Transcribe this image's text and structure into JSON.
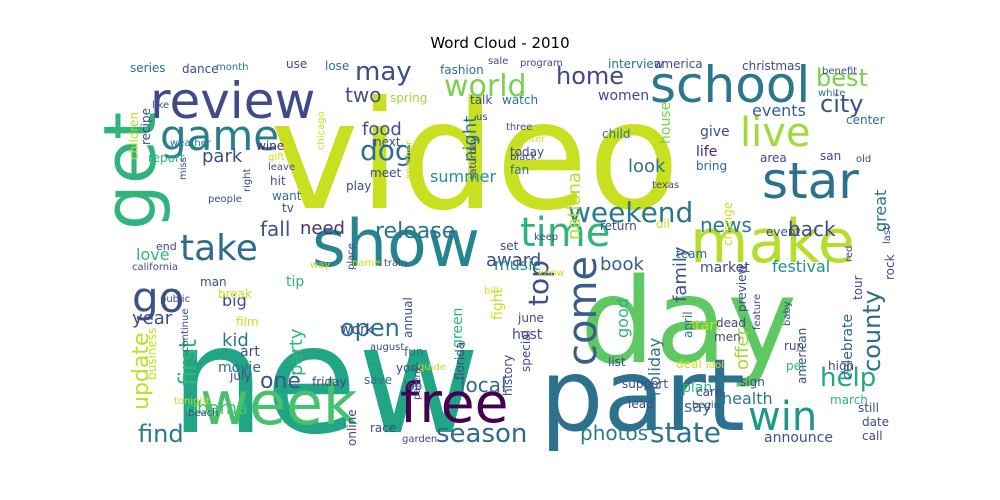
{
  "title": "Word Cloud - 2010",
  "words": [
    {
      "text": "video",
      "c": "#c8e020"
    },
    {
      "text": "new",
      "c": "#21a685"
    },
    {
      "text": "day",
      "c": "#5ec962"
    },
    {
      "text": "part",
      "c": "#2c728e"
    },
    {
      "text": "show",
      "c": "#25858e"
    },
    {
      "text": "week",
      "c": "#48c16e"
    },
    {
      "text": "get",
      "c": "#2fb47c"
    },
    {
      "text": "make",
      "c": "#b5de2b"
    },
    {
      "text": "free",
      "c": "#440154"
    },
    {
      "text": "school",
      "c": "#2a788e"
    },
    {
      "text": "review",
      "c": "#3e4a89"
    },
    {
      "text": "game",
      "c": "#277f8e"
    },
    {
      "text": "go",
      "c": "#3b528b"
    },
    {
      "text": "take",
      "c": "#2f6c8e"
    },
    {
      "text": "star",
      "c": "#2c728e"
    },
    {
      "text": "live",
      "c": "#a0da39"
    },
    {
      "text": "win",
      "c": "#1f988b"
    },
    {
      "text": "time",
      "c": "#2fb47c"
    },
    {
      "text": "come",
      "c": "#365d8d"
    },
    {
      "text": "weekend",
      "c": "#2a788e"
    },
    {
      "text": "state",
      "c": "#2c728e"
    },
    {
      "text": "season",
      "c": "#31688e"
    },
    {
      "text": "top",
      "c": "#3b528b"
    },
    {
      "text": "world",
      "c": "#7ad151"
    },
    {
      "text": "home",
      "c": "#3e4a89"
    },
    {
      "text": "city",
      "c": "#3b528b"
    },
    {
      "text": "best",
      "c": "#7ad151"
    },
    {
      "text": "dog",
      "c": "#2c728e"
    },
    {
      "text": "may",
      "c": "#3e4c8a"
    },
    {
      "text": "help",
      "c": "#22a884"
    },
    {
      "text": "county",
      "c": "#2f6c8e"
    },
    {
      "text": "find",
      "c": "#2a788e"
    },
    {
      "text": "first",
      "c": "#35b779"
    },
    {
      "text": "open",
      "c": "#2c728e"
    },
    {
      "text": "update",
      "c": "#bddf26"
    },
    {
      "text": "release",
      "c": "#2c728e"
    },
    {
      "text": "one",
      "c": "#3b528b"
    },
    {
      "text": "news",
      "c": "#2a788e"
    },
    {
      "text": "photos",
      "c": "#2a788e"
    },
    {
      "text": "back",
      "c": "#3e4a89"
    },
    {
      "text": "fall",
      "c": "#3b528b"
    },
    {
      "text": "two",
      "c": "#3b528b"
    },
    {
      "text": "obama",
      "c": "#48c16e"
    },
    {
      "text": "local",
      "c": "#31688e"
    },
    {
      "text": "need",
      "c": "#46337e"
    },
    {
      "text": "award",
      "c": "#3e4a89"
    },
    {
      "text": "music",
      "c": "#21918c"
    },
    {
      "text": "national",
      "c": "#b5de2b"
    },
    {
      "text": "look",
      "c": "#2c728e"
    },
    {
      "text": "book",
      "c": "#355f8d"
    },
    {
      "text": "family",
      "c": "#3b528b"
    },
    {
      "text": "party",
      "c": "#2fb47c"
    },
    {
      "text": "night",
      "c": "#2c728e"
    },
    {
      "text": "summer",
      "c": "#21918c"
    },
    {
      "text": "food",
      "c": "#3b528b"
    },
    {
      "text": "park",
      "c": "#3e4a89"
    },
    {
      "text": "year",
      "c": "#3e4c8a"
    },
    {
      "text": "kid",
      "c": "#2a788e"
    },
    {
      "text": "love",
      "c": "#35b779"
    },
    {
      "text": "events",
      "c": "#355f8d"
    },
    {
      "text": "great",
      "c": "#2c728e"
    },
    {
      "text": "festival",
      "c": "#21918c"
    },
    {
      "text": "offer",
      "c": "#a5db36"
    },
    {
      "text": "celebrate",
      "c": "#31688e"
    },
    {
      "text": "health",
      "c": "#2a788e"
    },
    {
      "text": "announce",
      "c": "#3b528b"
    },
    {
      "text": "say",
      "c": "#2c728e"
    },
    {
      "text": "holiday",
      "c": "#2c728e"
    },
    {
      "text": "good",
      "c": "#2fb47c"
    },
    {
      "text": "tip",
      "c": "#2fb47c"
    },
    {
      "text": "big",
      "c": "#3e4c8a"
    },
    {
      "text": "art",
      "c": "#3e4a89"
    },
    {
      "text": "movie",
      "c": "#2f6c8e"
    },
    {
      "text": "host",
      "c": "#3e4a89"
    },
    {
      "text": "work",
      "c": "#3b528b"
    },
    {
      "text": "women",
      "c": "#3e4a89"
    },
    {
      "text": "house",
      "c": "#7ad151"
    },
    {
      "text": "life",
      "c": "#482878"
    },
    {
      "text": "give",
      "c": "#3e4a89"
    },
    {
      "text": "bring",
      "c": "#31688e"
    },
    {
      "text": "market",
      "c": "#3e4a89"
    },
    {
      "text": "start",
      "c": "#c8e020"
    },
    {
      "text": "american",
      "c": "#3e4a89"
    },
    {
      "text": "plan",
      "c": "#2fb47c"
    },
    {
      "text": "fashion",
      "c": "#2c728e"
    },
    {
      "text": "interview",
      "c": "#2c728e"
    },
    {
      "text": "america",
      "c": "#3e4a89"
    },
    {
      "text": "christmas",
      "c": "#3e4a89"
    },
    {
      "text": "use",
      "c": "#3e4a89"
    },
    {
      "text": "lose",
      "c": "#2c728e"
    },
    {
      "text": "spring",
      "c": "#9fda3a"
    },
    {
      "text": "talk",
      "c": "#3e4a89"
    },
    {
      "text": "watch",
      "c": "#2c728e"
    },
    {
      "text": "today",
      "c": "#3e4a89"
    },
    {
      "text": "fan",
      "c": "#2c728e"
    },
    {
      "text": "meet",
      "c": "#3e4a89"
    },
    {
      "text": "next",
      "c": "#3e4a89"
    },
    {
      "text": "hit",
      "c": "#3b528b"
    },
    {
      "text": "want",
      "c": "#2c728e"
    },
    {
      "text": "tv",
      "c": "#3e4a89"
    },
    {
      "text": "play",
      "c": "#3e4a89"
    },
    {
      "text": "wine",
      "c": "#482878"
    },
    {
      "text": "children",
      "c": "#b5de2b"
    },
    {
      "text": "recipe",
      "c": "#3e4a89"
    },
    {
      "text": "report",
      "c": "#2fb47c"
    },
    {
      "text": "man",
      "c": "#3e4a89"
    },
    {
      "text": "break",
      "c": "#c8e020"
    },
    {
      "text": "end",
      "c": "#3e4a89"
    },
    {
      "text": "series",
      "c": "#2c728e"
    },
    {
      "text": "dance",
      "c": "#3e4a89"
    },
    {
      "text": "june",
      "c": "#3e4a89"
    },
    {
      "text": "fun",
      "c": "#2c728e"
    },
    {
      "text": "york",
      "c": "#3e4a89"
    },
    {
      "text": "july",
      "c": "#3e4a89"
    },
    {
      "text": "friday",
      "c": "#3e4a89"
    },
    {
      "text": "save",
      "c": "#2c728e"
    },
    {
      "text": "job",
      "c": "#3e4a89"
    },
    {
      "text": "race",
      "c": "#3e4a89"
    },
    {
      "text": "online",
      "c": "#3e4a89"
    },
    {
      "text": "green",
      "c": "#2fb47c"
    },
    {
      "text": "florida",
      "c": "#3e4a89"
    },
    {
      "text": "fight",
      "c": "#c8e020"
    },
    {
      "text": "special",
      "c": "#3e4a89"
    },
    {
      "text": "history",
      "c": "#3e4a89"
    },
    {
      "text": "support",
      "c": "#3e4a89"
    },
    {
      "text": "list",
      "c": "#3e4a89"
    },
    {
      "text": "deal",
      "c": "#c8e020"
    },
    {
      "text": "care",
      "c": "#3e4a89"
    },
    {
      "text": "sign",
      "c": "#3e4a89"
    },
    {
      "text": "run",
      "c": "#3e4a89"
    },
    {
      "text": "high",
      "c": "#3e4a89"
    },
    {
      "text": "march",
      "c": "#2fb47c"
    },
    {
      "text": "still",
      "c": "#3e4a89"
    },
    {
      "text": "date",
      "c": "#3e4a89"
    },
    {
      "text": "call",
      "c": "#3e4a89"
    },
    {
      "text": "san",
      "c": "#3e4a89"
    },
    {
      "text": "area",
      "c": "#3e4a89"
    },
    {
      "text": "center",
      "c": "#2c728e"
    },
    {
      "text": "white",
      "c": "#2c728e"
    },
    {
      "text": "benefit",
      "c": "#3e4a89"
    },
    {
      "text": "child",
      "c": "#2c728e"
    },
    {
      "text": "film",
      "c": "#c8e020"
    },
    {
      "text": "business",
      "c": "#c8e020"
    },
    {
      "text": "pet",
      "c": "#2fb47c"
    },
    {
      "text": "men",
      "c": "#3e4a89"
    },
    {
      "text": "dead",
      "c": "#3e4a89"
    },
    {
      "text": "lead",
      "c": "#3e4a89"
    },
    {
      "text": "april",
      "c": "#2c728e"
    },
    {
      "text": "idol",
      "c": "#c8e020"
    },
    {
      "text": "preview",
      "c": "#3e4a89"
    },
    {
      "text": "feature",
      "c": "#3e4a89"
    },
    {
      "text": "tour",
      "c": "#3e4a89"
    },
    {
      "text": "rock",
      "c": "#3e4a89"
    },
    {
      "text": "red",
      "c": "#3e4a89"
    },
    {
      "text": "last",
      "c": "#3e4a89"
    },
    {
      "text": "change",
      "c": "#c8e020"
    },
    {
      "text": "team",
      "c": "#2c728e"
    },
    {
      "text": "oil",
      "c": "#c8e020"
    },
    {
      "text": "texas",
      "c": "#3e4a89"
    },
    {
      "text": "return",
      "c": "#3e4a89"
    },
    {
      "text": "set",
      "c": "#3e4a89"
    },
    {
      "text": "keep",
      "c": "#3e4a89"
    },
    {
      "text": "know",
      "c": "#c8e020"
    },
    {
      "text": "bill",
      "c": "#c8e020"
    },
    {
      "text": "program",
      "c": "#3e4a89"
    },
    {
      "text": "sale",
      "c": "#3e4a89"
    },
    {
      "text": "us",
      "c": "#3e4a89"
    },
    {
      "text": "three",
      "c": "#3e4a89"
    },
    {
      "text": "black",
      "c": "#3e4a89"
    },
    {
      "text": "winter",
      "c": "#c8e020"
    },
    {
      "text": "saturday",
      "c": "#3e4a89"
    },
    {
      "text": "another",
      "c": "#c8e020"
    },
    {
      "text": "chicago",
      "c": "#c8e020"
    },
    {
      "text": "gift",
      "c": "#c8e020"
    },
    {
      "text": "leave",
      "c": "#3e4a89"
    },
    {
      "text": "miss",
      "c": "#3e4a89"
    },
    {
      "text": "people",
      "c": "#3e4a89"
    },
    {
      "text": "weather",
      "c": "#2c728e"
    },
    {
      "text": "like",
      "c": "#3e4a89"
    },
    {
      "text": "month",
      "c": "#2c728e"
    },
    {
      "text": "right",
      "c": "#3e4a89"
    },
    {
      "text": "way",
      "c": "#c8e020"
    },
    {
      "text": "place",
      "c": "#3e4a89"
    },
    {
      "text": "name",
      "c": "#c8e020"
    },
    {
      "text": "train",
      "c": "#3e4a89"
    },
    {
      "text": "california",
      "c": "#3e4a89"
    },
    {
      "text": "public",
      "c": "#3e4a89"
    },
    {
      "text": "continue",
      "c": "#3e4a89"
    },
    {
      "text": "august",
      "c": "#3e4a89"
    },
    {
      "text": "guide",
      "c": "#c8e020"
    },
    {
      "text": "parent",
      "c": "#3e4a89"
    },
    {
      "text": "garden",
      "c": "#3e4a89"
    },
    {
      "text": "tonight",
      "c": "#c8e020"
    },
    {
      "text": "beach",
      "c": "#3e4a89"
    },
    {
      "text": "annual",
      "c": "#3e4a89"
    },
    {
      "text": "begin",
      "c": "#3e4a89"
    },
    {
      "text": "baby",
      "c": "#3e4a89"
    },
    {
      "text": "old",
      "c": "#3e4a89"
    },
    {
      "text": "event",
      "c": "#3e4a89"
    }
  ]
}
